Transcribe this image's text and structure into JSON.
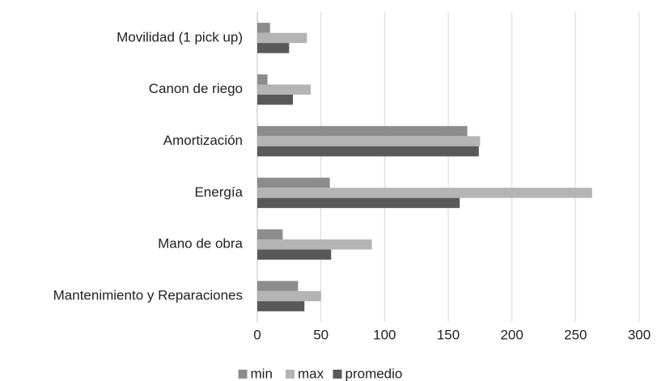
{
  "chart_data": {
    "type": "bar",
    "orientation": "horizontal",
    "categories": [
      "Movilidad (1 pick up)",
      "Canon de riego",
      "Amortización",
      "Energía",
      "Mano de obra",
      "Mantenimiento y Reparaciones"
    ],
    "series": [
      {
        "name": "min",
        "color": "#8c8c8c",
        "values": [
          10,
          8,
          165,
          57,
          20,
          32
        ]
      },
      {
        "name": "max",
        "color": "#b4b4b4",
        "values": [
          39,
          42,
          175,
          263,
          90,
          50
        ]
      },
      {
        "name": "promedio",
        "color": "#595959",
        "values": [
          25,
          28,
          174,
          159,
          58,
          37
        ]
      }
    ],
    "xlim": [
      0,
      300
    ],
    "xticks": [
      0,
      50,
      100,
      150,
      200,
      250,
      300
    ],
    "grid": true,
    "legend": "bottom"
  }
}
